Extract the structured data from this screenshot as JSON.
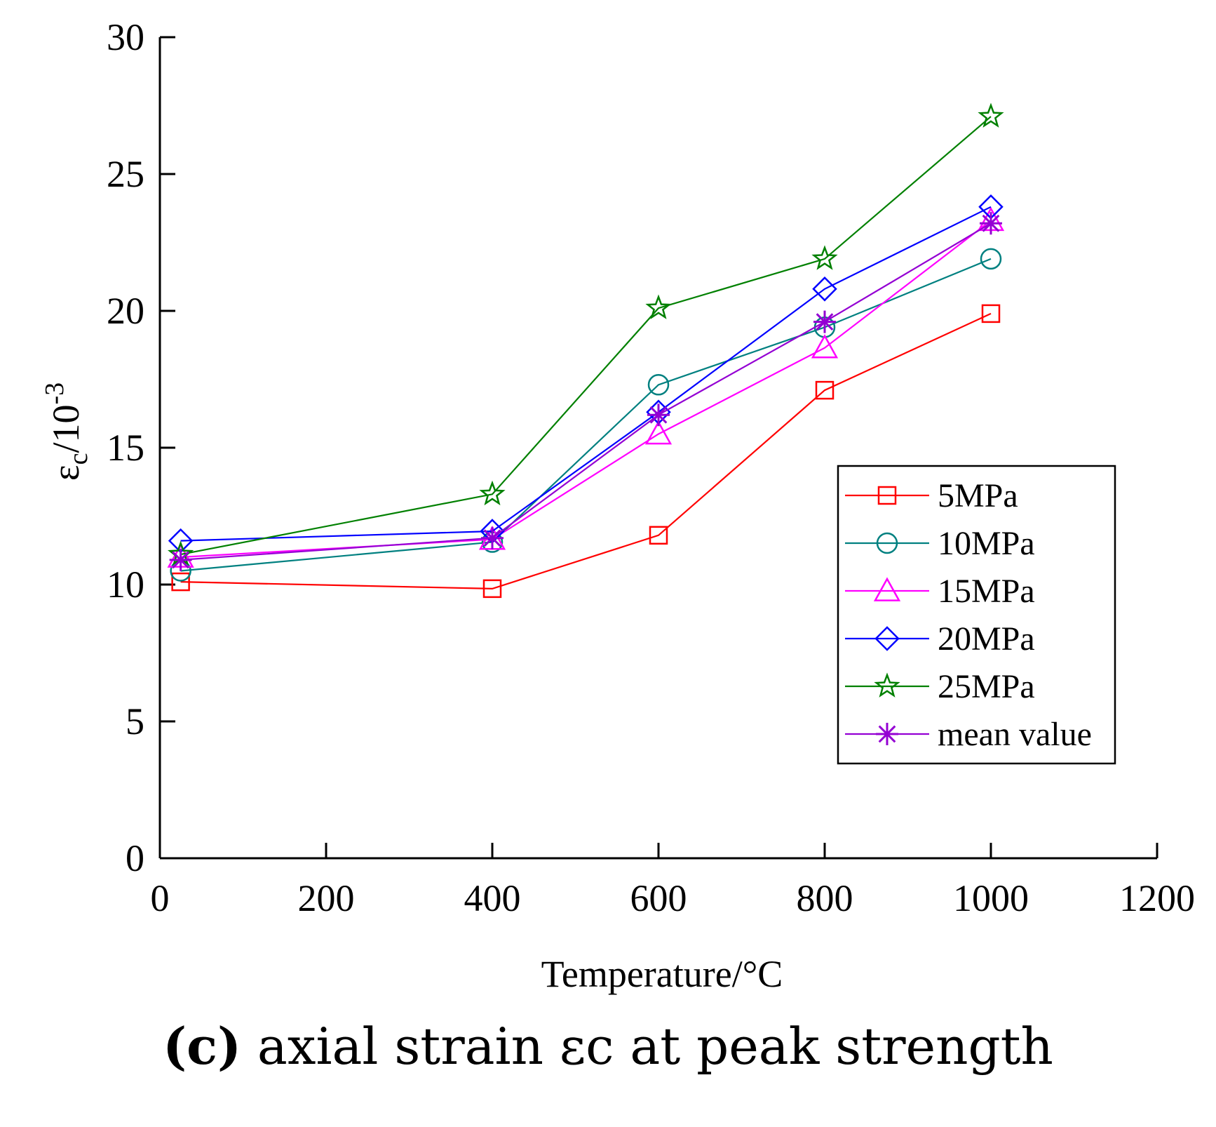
{
  "chart_data": {
    "type": "line",
    "xlabel": "Temperature/°C",
    "ylabel_main": "ε",
    "ylabel_sub": "c",
    "ylabel_rest": "/10",
    "ylabel_sup": "-3",
    "xlim": [
      0,
      1200
    ],
    "ylim": [
      0,
      30
    ],
    "xticks": [
      0,
      200,
      400,
      600,
      800,
      1000,
      1200
    ],
    "yticks": [
      0,
      5,
      10,
      15,
      20,
      25,
      30
    ],
    "x": [
      25,
      400,
      600,
      800,
      1000
    ],
    "series": [
      {
        "name": "5MPa",
        "color": "#ff0000",
        "marker": "square",
        "values": [
          10.1,
          9.85,
          11.8,
          17.1,
          19.9
        ]
      },
      {
        "name": "10MPa",
        "color": "#008080",
        "marker": "circle",
        "values": [
          10.5,
          11.55,
          17.3,
          19.4,
          21.9
        ]
      },
      {
        "name": "15MPa",
        "color": "#ff00ff",
        "marker": "triangle",
        "values": [
          11.0,
          11.65,
          15.5,
          18.65,
          23.3
        ]
      },
      {
        "name": "20MPa",
        "color": "#0000ff",
        "marker": "diamond",
        "values": [
          11.6,
          11.95,
          16.3,
          20.8,
          23.8
        ]
      },
      {
        "name": "25MPa",
        "color": "#008000",
        "marker": "star",
        "values": [
          11.1,
          13.3,
          20.1,
          21.9,
          27.1
        ]
      },
      {
        "name": "mean value",
        "color": "#9400d3",
        "marker": "asterisk",
        "values": [
          10.9,
          11.7,
          16.2,
          19.6,
          23.2
        ]
      }
    ],
    "legend_position": "center-right"
  },
  "caption": {
    "label": "(c)",
    "text": " axial strain εc at peak strength"
  }
}
